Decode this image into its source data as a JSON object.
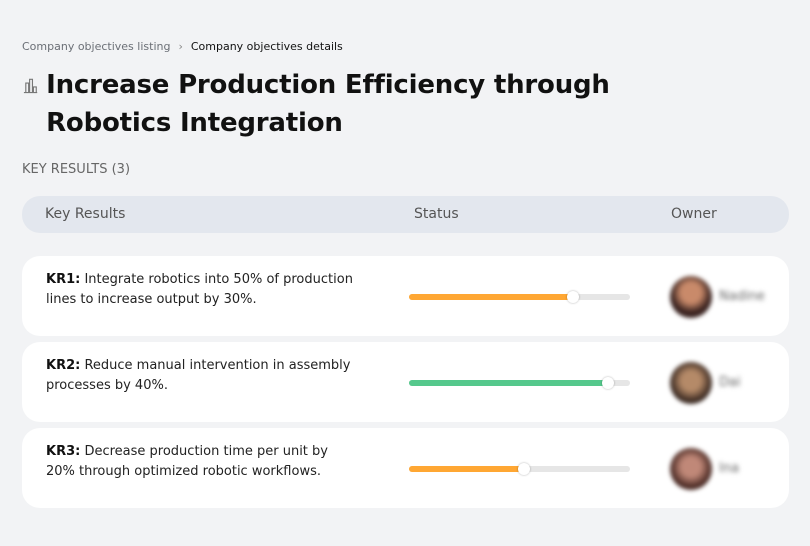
{
  "breadcrumb": {
    "parent": "Company objectives listing",
    "separator": "›",
    "current": "Company objectives details"
  },
  "page": {
    "title": "Increase Production Efficiency through Robotics Integration",
    "icon": "building-chart-icon"
  },
  "key_results_label": "KEY RESULTS (3)",
  "table": {
    "headers": {
      "key_results": "Key Results",
      "status": "Status",
      "owner": "Owner"
    }
  },
  "colors": {
    "orange": "#ffa733",
    "green": "#55c88c"
  },
  "rows": [
    {
      "id": "KR1:",
      "text": " Integrate robotics into 50% of production lines to increase output by 30%.",
      "progress": 74,
      "color": "#ffa733",
      "owner": "Nadine"
    },
    {
      "id": "KR2:",
      "text": " Reduce manual intervention in assembly processes by 40%.",
      "progress": 90,
      "color": "#55c88c",
      "owner": "Dai"
    },
    {
      "id": "KR3:",
      "text": " Decrease production time per unit by 20% through optimized robotic workflows.",
      "progress": 52,
      "color": "#ffa733",
      "owner": "Ina"
    }
  ]
}
